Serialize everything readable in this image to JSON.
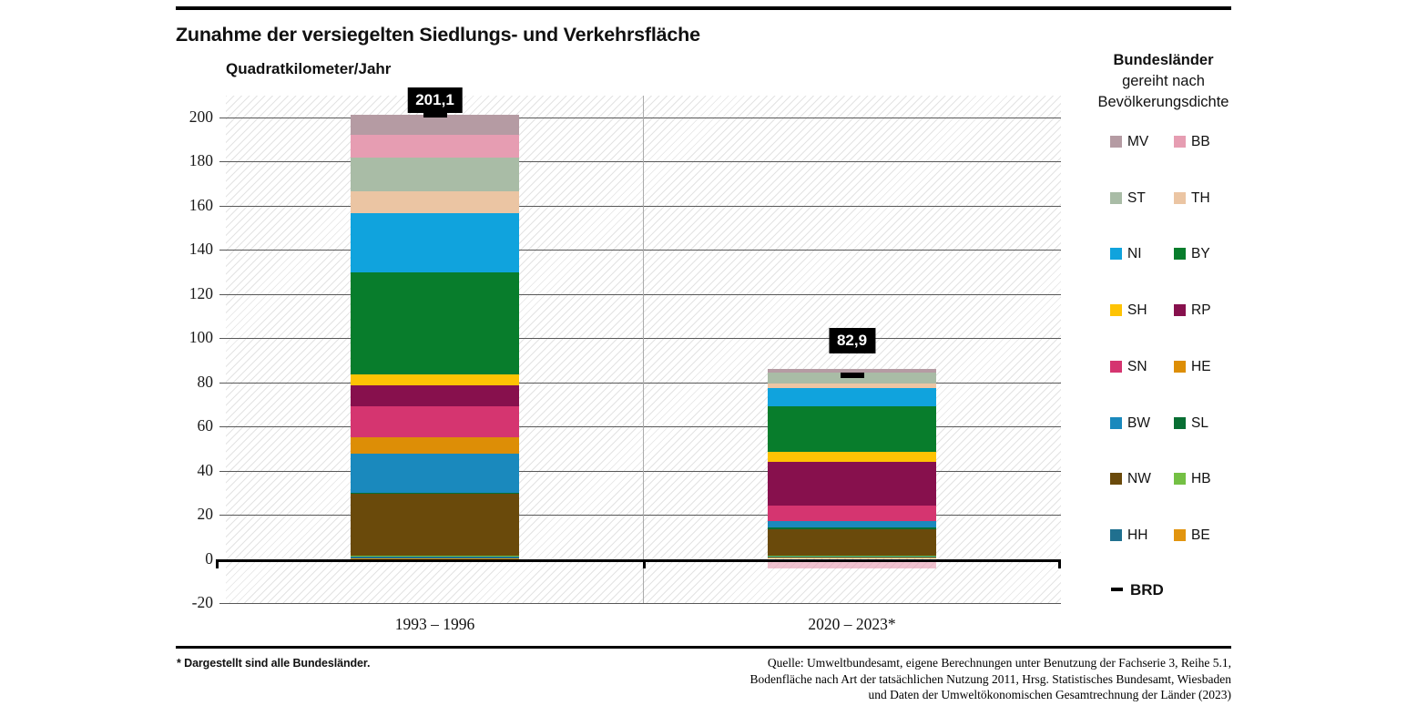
{
  "page": {
    "title": "Zunahme der versiegelten Siedlungs- und Verkehrsfläche",
    "footnote": "* Dargestellt sind alle Bundesländer.",
    "source_lines": [
      "Quelle: Umweltbundesamt, eigene Berechnungen unter Benutzung der Fachserie 3, Reihe 5.1,",
      "Bodenfläche nach Art der tatsächlichen Nutzung 2011, Hrsg. Statistisches Bundesamt, Wiesbaden",
      "und Daten der Umweltökonomischen Gesamtrechnung der Länder (2023)"
    ]
  },
  "legend": {
    "title_line1": "Bundesländer",
    "title_line2": "gereiht nach",
    "title_line3": "Bevölkerungsdichte",
    "brd_label": "BRD",
    "brd_color": "#000000"
  },
  "chart_data": {
    "type": "bar",
    "stacked": true,
    "title": "Zunahme der versiegelten Siedlungs- und Verkehrsfläche",
    "ylabel": "Quadratkilometer/Jahr",
    "categories": [
      "1993 – 1996",
      "2020 – 2023*"
    ],
    "ylim": [
      -20,
      210
    ],
    "yticks": [
      200,
      180,
      160,
      140,
      120,
      100,
      80,
      60,
      40,
      20,
      0,
      -20
    ],
    "grid": "horizontal",
    "background_pattern": "diagonal-hatch",
    "legend_position": "right",
    "legend_note": "Bundesländer gereiht nach Bevölkerungsdichte",
    "stack_order": "first series is top of stack, negatives drawn below zero",
    "series": [
      {
        "name": "MV",
        "color": "#b59ba3",
        "values": [
          9.0,
          1.4
        ]
      },
      {
        "name": "BB",
        "color": "#e69db2",
        "values": [
          10.3,
          -2.9
        ]
      },
      {
        "name": "ST",
        "color": "#a9bca6",
        "values": [
          15.5,
          5.2
        ]
      },
      {
        "name": "TH",
        "color": "#ebc5a3",
        "values": [
          9.9,
          1.8
        ]
      },
      {
        "name": "NI",
        "color": "#10a3dd",
        "values": [
          26.8,
          8.5
        ]
      },
      {
        "name": "BY",
        "color": "#087d2c",
        "values": [
          46.1,
          20.6
        ]
      },
      {
        "name": "SH",
        "color": "#fec304",
        "values": [
          4.8,
          4.5
        ]
      },
      {
        "name": "RP",
        "color": "#87104d",
        "values": [
          9.6,
          19.6
        ]
      },
      {
        "name": "SN",
        "color": "#d53570",
        "values": [
          14.1,
          6.9
        ]
      },
      {
        "name": "HE",
        "color": "#dd8e06",
        "values": [
          7.2,
          0.0
        ]
      },
      {
        "name": "BW",
        "color": "#1a89bd",
        "values": [
          17.9,
          3.0
        ]
      },
      {
        "name": "SL",
        "color": "#086e33",
        "values": [
          0.5,
          0.8
        ]
      },
      {
        "name": "NW",
        "color": "#6a4a0b",
        "values": [
          28.0,
          12.0
        ]
      },
      {
        "name": "HB",
        "color": "#74c044",
        "values": [
          0.4,
          0.1
        ]
      },
      {
        "name": "HH",
        "color": "#20708f",
        "values": [
          0.6,
          0.7
        ]
      },
      {
        "name": "BE",
        "color": "#e2950f",
        "values": [
          0.4,
          0.7
        ]
      }
    ],
    "brd_marker": {
      "name": "BRD",
      "color": "#000000",
      "values": [
        201.1,
        82.9
      ]
    },
    "totals": [
      201.1,
      82.9
    ],
    "total_labels": [
      "201,1",
      "82,9"
    ]
  }
}
